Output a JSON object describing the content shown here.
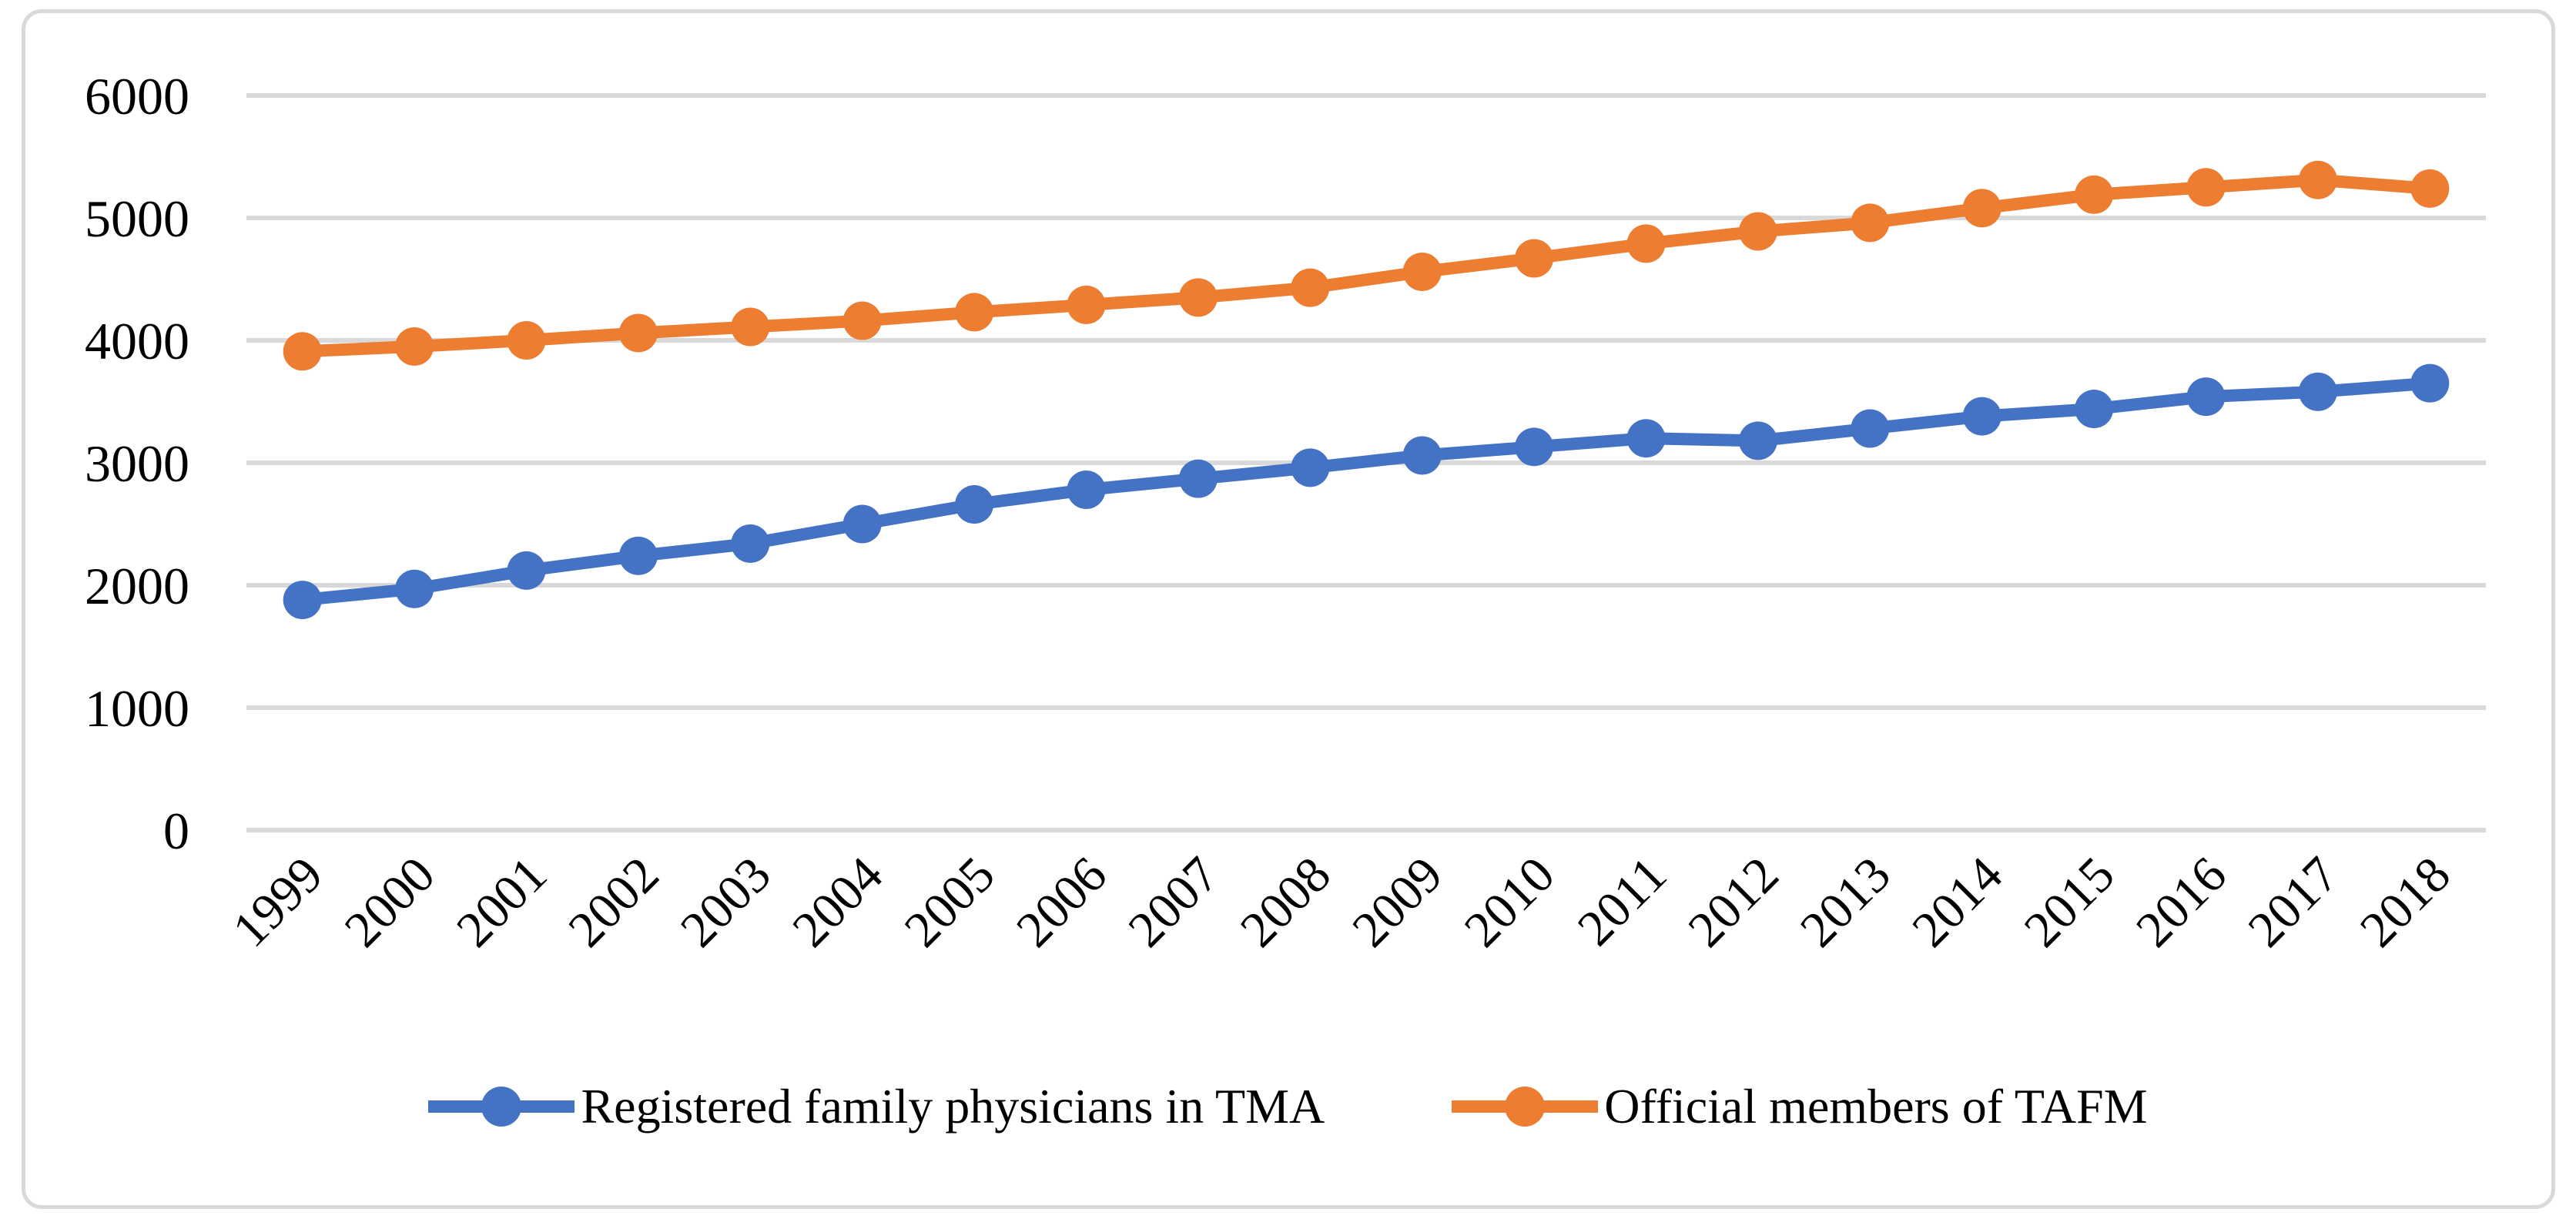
{
  "figure": {
    "background_color": "#FFFFFF",
    "border_color": "#D9D9D9"
  },
  "chart_data": {
    "type": "line",
    "categories": [
      "1999",
      "2000",
      "2001",
      "2002",
      "2003",
      "2004",
      "2005",
      "2006",
      "2007",
      "2008",
      "2009",
      "2010",
      "2011",
      "2012",
      "2013",
      "2014",
      "2015",
      "2016",
      "2017",
      "2018"
    ],
    "series": [
      {
        "name": "Registered family physicians in TMA",
        "color": "#4472C4",
        "values": [
          1880,
          1970,
          2120,
          2240,
          2340,
          2500,
          2660,
          2780,
          2870,
          2960,
          3060,
          3130,
          3200,
          3180,
          3280,
          3380,
          3440,
          3540,
          3580,
          3650
        ]
      },
      {
        "name": "Official members of TAFM",
        "color": "#ED7D31",
        "values": [
          3910,
          3950,
          4000,
          4060,
          4110,
          4160,
          4230,
          4290,
          4350,
          4430,
          4560,
          4670,
          4790,
          4890,
          4960,
          5080,
          5190,
          5250,
          5310,
          5240
        ]
      }
    ],
    "title": "",
    "xlabel": "",
    "ylabel": "",
    "ylim": [
      0,
      6000
    ],
    "yticks": [
      0,
      1000,
      2000,
      3000,
      4000,
      5000,
      6000
    ],
    "grid": true,
    "gridline_color": "#D9D9D9",
    "tick_label_color": "#000000",
    "x_label_rotation": -45,
    "legend_position": "bottom",
    "marker": "circle"
  }
}
